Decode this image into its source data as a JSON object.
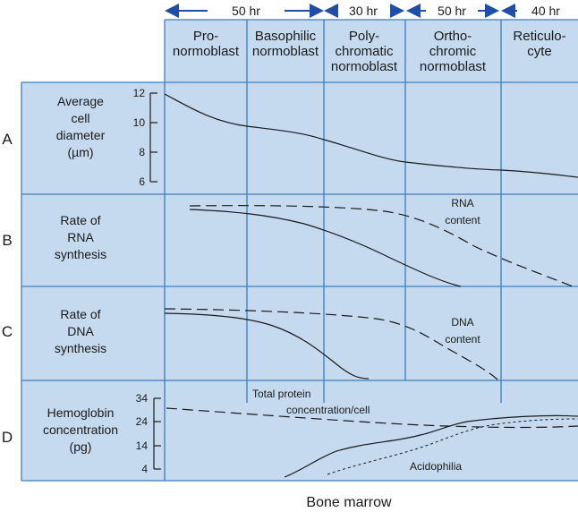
{
  "durations": [
    {
      "label": "50 hr"
    },
    {
      "label": "30 hr"
    },
    {
      "label": "50 hr"
    },
    {
      "label": "40 hr"
    }
  ],
  "stages": [
    {
      "line1": "Pro-",
      "line2": "normoblast"
    },
    {
      "line1": "Basophilic",
      "line2": "normoblast"
    },
    {
      "line1": "Poly-",
      "line2": "chromatic",
      "line3": "normoblast"
    },
    {
      "line1": "Ortho-",
      "line2": "chromic",
      "line3": "normoblast"
    },
    {
      "line1": "Reticulo-",
      "line2": "cyte"
    }
  ],
  "rows": [
    {
      "letter": "A",
      "title": [
        "Average",
        "cell",
        "diameter",
        "(µm)"
      ],
      "ticks": [
        "12",
        "10",
        "8",
        "6"
      ]
    },
    {
      "letter": "B",
      "title": [
        "Rate of",
        "RNA",
        "synthesis"
      ],
      "curve_label": [
        "RNA",
        "content"
      ]
    },
    {
      "letter": "C",
      "title": [
        "Rate of",
        "DNA",
        "synthesis"
      ],
      "curve_label": [
        "DNA",
        "content"
      ]
    },
    {
      "letter": "D",
      "title": [
        "Hemoglobin",
        "concentration",
        "(pg)"
      ],
      "ticks": [
        "34",
        "24",
        "14",
        "4"
      ],
      "annotations": {
        "protein": [
          "Total protein",
          "concentration/cell"
        ],
        "acidophilia": "Acidophilia"
      }
    }
  ],
  "footer": "Bone marrow",
  "colors": {
    "fill": "#c5d9ef",
    "grid": "#3a7fc1",
    "ink": "#1a1a1a",
    "arrow": "#1f4ea8"
  }
}
